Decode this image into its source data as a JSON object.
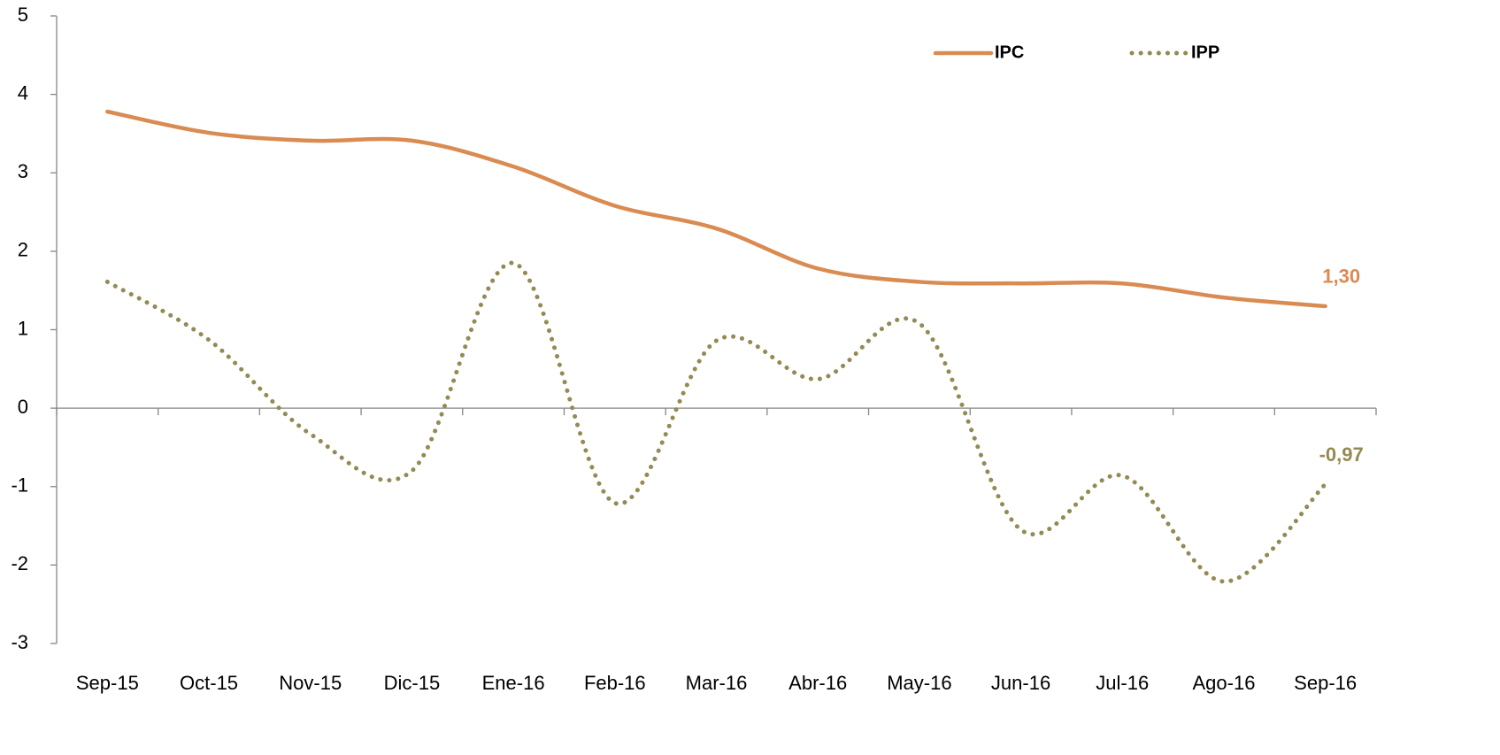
{
  "chart_data": {
    "type": "line",
    "categories": [
      "Sep-15",
      "Oct-15",
      "Nov-15",
      "Dic-15",
      "Ene-16",
      "Feb-16",
      "Mar-16",
      "Abr-16",
      "May-16",
      "Jun-16",
      "Jul-16",
      "Ago-16",
      "Sep-16"
    ],
    "series": [
      {
        "name": "IPC",
        "color": "#d98b52",
        "style": "solid",
        "values": [
          3.78,
          3.51,
          3.41,
          3.41,
          3.08,
          2.58,
          2.29,
          1.78,
          1.61,
          1.59,
          1.59,
          1.41,
          1.3
        ],
        "value_labels": [
          null,
          null,
          null,
          null,
          null,
          null,
          null,
          null,
          null,
          null,
          null,
          null,
          "1,30"
        ]
      },
      {
        "name": "IPP",
        "color": "#948a54",
        "style": "dotted",
        "values": [
          1.61,
          0.87,
          -0.33,
          -0.8,
          1.85,
          -1.21,
          0.86,
          0.37,
          1.08,
          -1.55,
          -0.86,
          -2.21,
          -0.97
        ],
        "value_labels": [
          null,
          null,
          null,
          null,
          null,
          null,
          null,
          null,
          null,
          null,
          null,
          null,
          "-0,97"
        ]
      }
    ],
    "ylim": [
      -3,
      5
    ],
    "yticks": [
      -3,
      -2,
      -1,
      0,
      1,
      2,
      3,
      4,
      5
    ],
    "smooth": true,
    "legend": "top-right"
  }
}
